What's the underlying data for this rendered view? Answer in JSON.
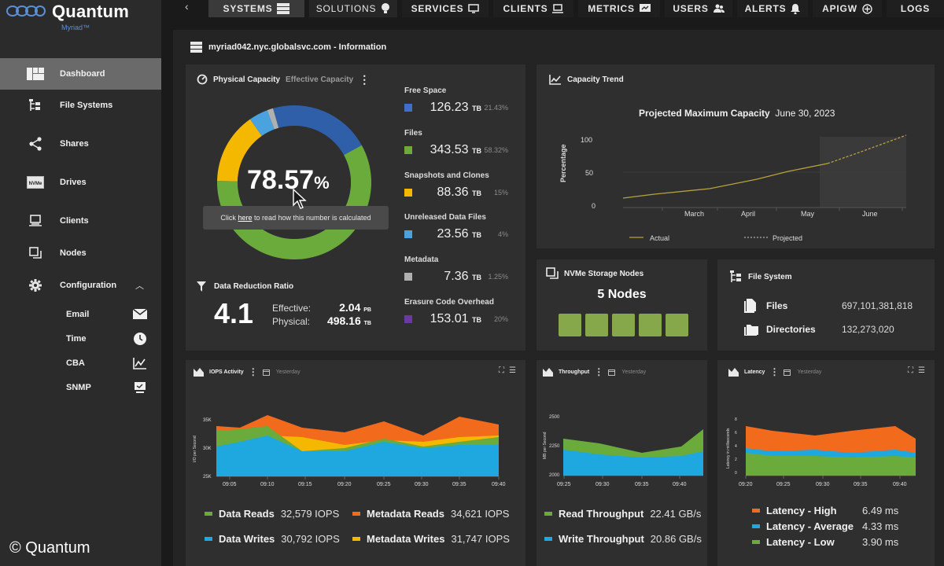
{
  "brand": {
    "name": "Quantum",
    "product": "Myriad™"
  },
  "copyright": "© Quantum",
  "colors": {
    "blue": "#3f6fc9",
    "green": "#6aab3c",
    "yellow": "#f5b800",
    "lightblue": "#4aa3df",
    "gray": "#b0b0b0",
    "purple": "#6a3aa0",
    "orange": "#f26a1b",
    "node": "#86a84a"
  },
  "sidebar": {
    "items": [
      {
        "label": "Dashboard",
        "icon": "dashboard-icon",
        "active": true
      },
      {
        "label": "File Systems",
        "icon": "file-systems-icon"
      },
      {
        "label": "Shares",
        "icon": "share-icon"
      },
      {
        "label": "Drives",
        "icon": "nvme-drive-icon"
      },
      {
        "label": "Clients",
        "icon": "client-icon"
      },
      {
        "label": "Nodes",
        "icon": "nodes-icon"
      },
      {
        "label": "Configuration",
        "icon": "gear-icon"
      }
    ],
    "config_items": [
      {
        "label": "Email",
        "icon": "mail-icon"
      },
      {
        "label": "Time",
        "icon": "clock-icon"
      },
      {
        "label": "CBA",
        "icon": "chart-icon"
      },
      {
        "label": "SNMP",
        "icon": "monitor-icon"
      }
    ]
  },
  "topnav": {
    "back": "‹",
    "tabs": [
      {
        "label": "SYSTEMS",
        "icon": "server-icon",
        "active": true
      },
      {
        "label": "SOLUTIONS",
        "icon": "bulb-icon"
      },
      {
        "label": "SERVICES",
        "icon": "monitor-icon"
      },
      {
        "label": "CLIENTS",
        "icon": "client-icon"
      },
      {
        "label": "METRICS",
        "icon": "metrics-icon"
      },
      {
        "label": "USERS",
        "icon": "users-icon"
      },
      {
        "label": "ALERTS",
        "icon": "bell-icon"
      },
      {
        "label": "APIGW",
        "icon": "gateway-icon"
      },
      {
        "label": "LOGS",
        "icon": ""
      }
    ]
  },
  "page_title": "myriad042.nyc.globalsvc.com - Information",
  "capacity": {
    "tab_physical": "Physical Capacity",
    "tab_effective": "Effective Capacity",
    "percent": "78.57",
    "percent_sign": "%",
    "tooltip_pre": "Click ",
    "tooltip_link": "here",
    "tooltip_post": " to read how this number is calculated",
    "legend": [
      {
        "name": "Free Space",
        "value": "126.23",
        "unit": "TB",
        "pct": "21.43%",
        "color": "#3f6fc9"
      },
      {
        "name": "Files",
        "value": "343.53",
        "unit": "TB",
        "pct": "58.32%",
        "color": "#6aab3c"
      },
      {
        "name": "Snapshots and Clones",
        "value": "88.36",
        "unit": "TB",
        "pct": "15%",
        "color": "#f5b800"
      },
      {
        "name": "Unreleased Data Files",
        "value": "23.56",
        "unit": "TB",
        "pct": "4%",
        "color": "#4aa3df"
      },
      {
        "name": "Metadata",
        "value": "7.36",
        "unit": "TB",
        "pct": "1.25%",
        "color": "#b0b0b0"
      },
      {
        "name": "Erasure Code Overhead",
        "value": "153.01",
        "unit": "TB",
        "pct": "20%",
        "color": "#6a3aa0"
      }
    ],
    "donut_fractions": [
      0.2143,
      0.5832,
      0.15,
      0.04,
      0.0125
    ],
    "drr_title": "Data Reduction Ratio",
    "drr_value": "4.1",
    "effective_label": "Effective:",
    "effective_value": "2.04",
    "effective_unit": "PB",
    "physical_label": "Physical:",
    "physical_value": "498.16",
    "physical_unit": "TB"
  },
  "trend": {
    "title": "Capacity Trend",
    "chart_title": "Projected Maximum Capacity",
    "chart_date": "June 30, 2023",
    "ylabel": "Percentage",
    "yticks": [
      "100",
      "50",
      "0"
    ],
    "xticks": [
      "March",
      "April",
      "May",
      "June"
    ],
    "legend_actual": "Actual",
    "legend_projected": "Projected"
  },
  "nvme": {
    "title": "NVMe Storage Nodes",
    "count_label": "5 Nodes",
    "nodes": 5
  },
  "filesystem": {
    "title": "File System",
    "files_label": "Files",
    "files_value": "697,101,381,818",
    "dirs_label": "Directories",
    "dirs_value": "132,273,020"
  },
  "iops": {
    "title": "IOPS Activity",
    "period": "Yesterday",
    "ylabel": "I/O per Second",
    "yticks": [
      "35K",
      "30K",
      "25K"
    ],
    "xticks": [
      "09:05",
      "09:10",
      "09:15",
      "09:20",
      "09:25",
      "09:30",
      "09:35",
      "09:40"
    ],
    "legend": [
      {
        "name": "Data Reads",
        "value": "32,579 IOPS",
        "color": "#6aab3c"
      },
      {
        "name": "Metadata Reads",
        "value": "34,621 IOPS",
        "color": "#f26a1b"
      },
      {
        "name": "Data Writes",
        "value": "30,792 IOPS",
        "color": "#1fa8e0"
      },
      {
        "name": "Metadata Writes",
        "value": "31,747 IOPS",
        "color": "#f5b800"
      }
    ]
  },
  "throughput": {
    "title": "Throughput",
    "period": "Yesterday",
    "ylabel": "MB per Second",
    "yticks": [
      "2500",
      "2250",
      "2000"
    ],
    "xticks": [
      "09:25",
      "09:30",
      "09:35",
      "09:40"
    ],
    "legend": [
      {
        "name": "Read Throughput",
        "value": "22.41 GB/s",
        "color": "#6aab3c"
      },
      {
        "name": "Write Throughput",
        "value": "20.86 GB/s",
        "color": "#1fa8e0"
      }
    ]
  },
  "latency": {
    "title": "Latency",
    "period": "Yesterday",
    "ylabel": "Latency in milliseconds",
    "yticks": [
      "8",
      "6",
      "4",
      "2",
      "0"
    ],
    "xticks": [
      "09:20",
      "09:25",
      "09:30",
      "09:35",
      "09:40"
    ],
    "legend": [
      {
        "name": "Latency - High",
        "value": "6.49 ms",
        "color": "#f26a1b"
      },
      {
        "name": "Latency - Average",
        "value": "4.33 ms",
        "color": "#1fa8e0"
      },
      {
        "name": "Latency - Low",
        "value": "3.90 ms",
        "color": "#6aab3c"
      }
    ]
  }
}
